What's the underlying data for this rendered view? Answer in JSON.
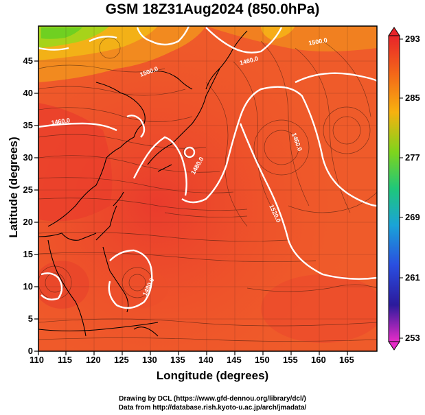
{
  "title": "GSM 18Z31Aug2024 (850.0hPa)",
  "xlabel": "Longitude (degrees)",
  "ylabel": "Latitude  (degrees)",
  "credits": [
    "Drawing by DCL (https://www.gfd-dennou.org/library/dcl/)",
    "Data from http://database.rish.kyoto-u.ac.jp/arch/jmadata/"
  ],
  "map": {
    "x_ticks": [
      "110",
      "115",
      "120",
      "125",
      "130",
      "135",
      "140",
      "145",
      "150",
      "155",
      "160",
      "165"
    ],
    "y_ticks": [
      "0",
      "5",
      "10",
      "15",
      "20",
      "25",
      "30",
      "35",
      "40",
      "45"
    ],
    "colorbar_ticks": [
      "293",
      "285",
      "277",
      "269",
      "261",
      "253"
    ],
    "contour_labels": [
      "1500.0",
      "1460.0",
      "1480.0",
      "1460.0",
      "1520.0",
      "1500.0",
      "1460.0",
      "1480.0"
    ]
  },
  "chart_data": {
    "type": "heatmap",
    "title": "GSM 18Z31Aug2024 (850.0hPa)",
    "xlabel": "Longitude (degrees)",
    "ylabel": "Latitude  (degrees)",
    "xlim": [
      110,
      170
    ],
    "ylim": [
      0,
      50
    ],
    "colorbar": {
      "min": 253,
      "max": 293,
      "ticks": [
        293,
        285,
        277,
        269,
        261,
        253
      ]
    },
    "contours": [
      1460,
      1480,
      1500,
      1520
    ]
  }
}
